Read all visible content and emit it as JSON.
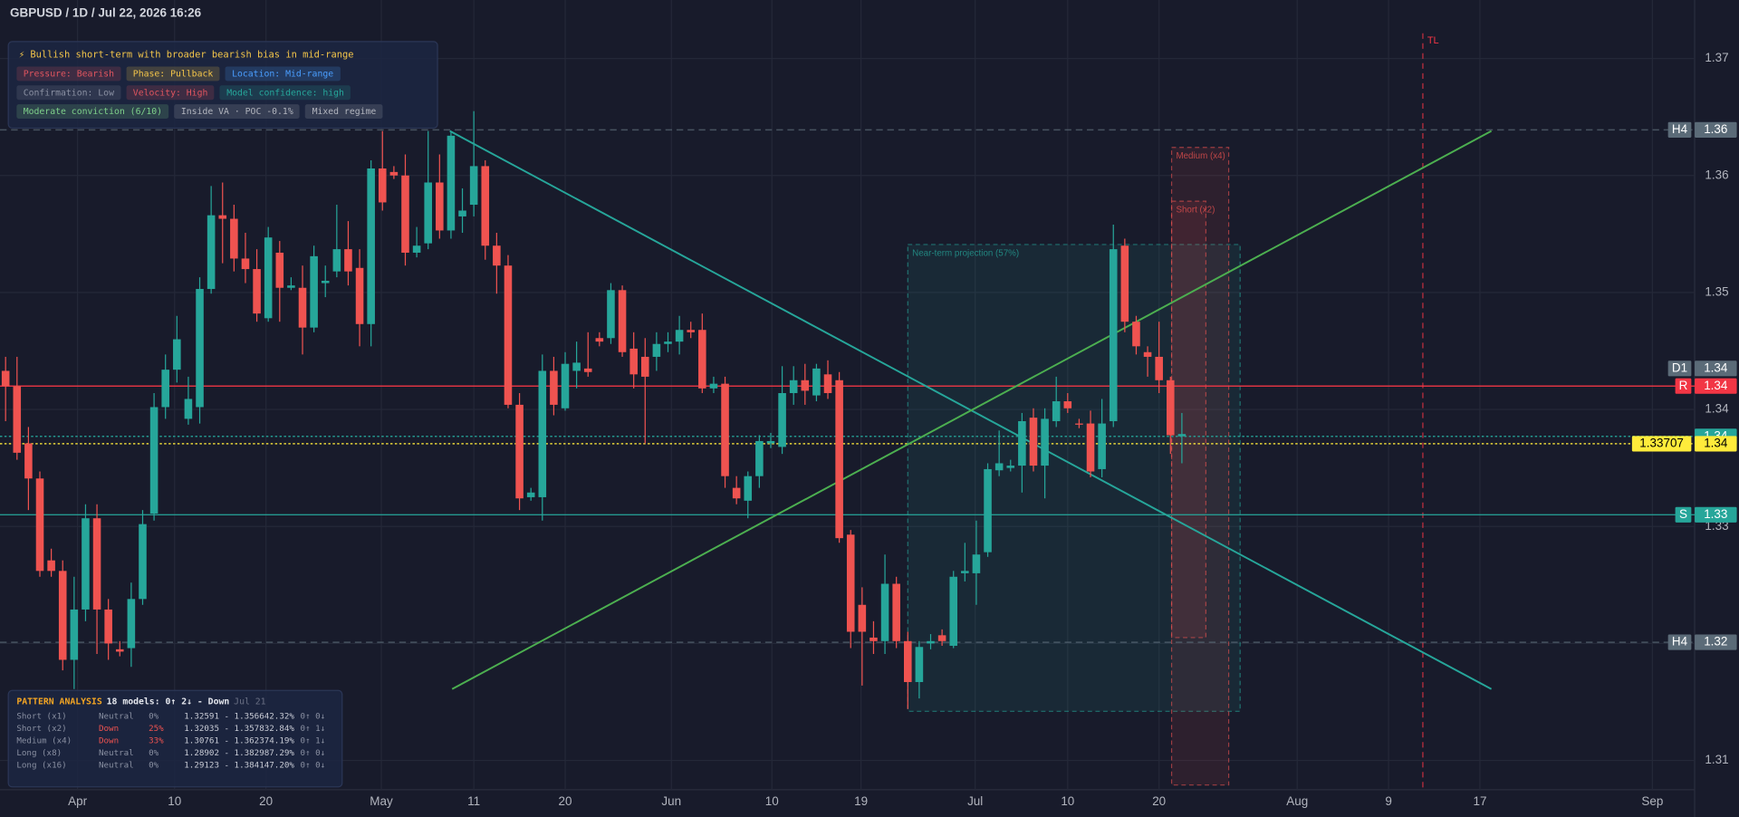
{
  "header": "GBPUSD / 1D / Jul 22, 2026 16:26",
  "insight": {
    "headline": "⚡ Bullish short-term with broader bearish bias in mid-range",
    "chips": [
      {
        "text": "Pressure: Bearish",
        "color": "#e0555f"
      },
      {
        "text": "Phase: Pullback",
        "color": "#f3c54a"
      },
      {
        "text": "Location: Mid-range",
        "color": "#4a9eff"
      },
      {
        "text": "Confirmation: Low",
        "color": "#8a90a2"
      },
      {
        "text": "Velocity: High",
        "color": "#e0555f"
      },
      {
        "text": "Model confidence: high",
        "color": "#26a69a"
      },
      {
        "text": "Moderate conviction (6/10)",
        "color": "#7ed08a"
      },
      {
        "text": "Inside VA · POC -0.1%",
        "color": "#b2b5be"
      },
      {
        "text": "Mixed regime",
        "color": "#b2b5be"
      }
    ]
  },
  "pattern_analysis": {
    "title": "PATTERN ANALYSIS",
    "summary": "18 models: 0↑ 2↓ - Down",
    "date": "Jul 21",
    "rows": [
      {
        "cells": [
          "Short (x1)",
          "Neutral",
          "0%",
          "1.32591 - 1.35664",
          "2.32%",
          "0↑ 0↓"
        ],
        "color": "#8a90a2"
      },
      {
        "cells": [
          "Short (x2)",
          "Down",
          "25%",
          "1.32035 - 1.35783",
          "2.84%",
          "0↑ 1↓"
        ],
        "color": "#ef5350"
      },
      {
        "cells": [
          "Medium (x4)",
          "Down",
          "33%",
          "1.30761 - 1.36237",
          "4.19%",
          "0↑ 1↓"
        ],
        "color": "#ef5350"
      },
      {
        "cells": [
          "Long (x8)",
          "Neutral",
          "0%",
          "1.28902 - 1.38298",
          "7.29%",
          "0↑ 0↓"
        ],
        "color": "#8a90a2"
      },
      {
        "cells": [
          "Long (x16)",
          "Neutral",
          "0%",
          "1.29123 - 1.38414",
          "7.20%",
          "0↑ 0↓"
        ],
        "color": "#8a90a2"
      }
    ]
  },
  "chart_data": {
    "type": "candlestick",
    "up_color": "#26a69a",
    "down_color": "#ef5350",
    "xlim": [
      -0.49,
      147.9
    ],
    "ylim": [
      1.3075,
      1.375
    ],
    "grid": true,
    "xticks": [
      {
        "value": 6.3,
        "label": "Apr"
      },
      {
        "value": 14.8,
        "label": "10"
      },
      {
        "value": 22.8,
        "label": "20"
      },
      {
        "value": 32.9,
        "label": "May"
      },
      {
        "value": 41,
        "label": "11"
      },
      {
        "value": 49,
        "label": "20"
      },
      {
        "value": 58.3,
        "label": "Jun"
      },
      {
        "value": 67.1,
        "label": "10"
      },
      {
        "value": 74.9,
        "label": "19"
      },
      {
        "value": 84.9,
        "label": "Jul"
      },
      {
        "value": 93,
        "label": "10"
      },
      {
        "value": 101,
        "label": "20"
      },
      {
        "value": 113.1,
        "label": "Aug"
      },
      {
        "value": 121.1,
        "label": "9"
      },
      {
        "value": 129.1,
        "label": "17"
      },
      {
        "value": 144.2,
        "label": "Sep"
      }
    ],
    "yticks": [
      1.31,
      1.32,
      1.33,
      1.34,
      1.35,
      1.36,
      1.37
    ],
    "open": [
      1.3433,
      1.342,
      1.3371,
      1.3341,
      1.3271,
      1.3262,
      1.3186,
      1.3229,
      1.3307,
      1.3229,
      1.3195,
      1.3196,
      1.3238,
      1.3311,
      1.3402,
      1.3434,
      1.3392,
      1.3402,
      1.3503,
      1.3566,
      1.3563,
      1.3529,
      1.352,
      1.3478,
      1.3534,
      1.3504,
      1.3504,
      1.347,
      1.3508,
      1.3518,
      1.3537,
      1.3521,
      1.3473,
      1.3606,
      1.3603,
      1.36,
      1.3534,
      1.3542,
      1.3594,
      1.3553,
      1.3565,
      1.3575,
      1.3608,
      1.354,
      1.3523,
      1.3404,
      1.3325,
      1.3325,
      1.3433,
      1.3401,
      1.3433,
      1.3435,
      1.3461,
      1.3461,
      1.3502,
      1.3452,
      1.3445,
      1.3445,
      1.3456,
      1.3458,
      1.3468,
      1.3468,
      1.3418,
      1.3422,
      1.3333,
      1.3322,
      1.3343,
      1.3371,
      1.3368,
      1.3414,
      1.3425,
      1.3412,
      1.343,
      1.3425,
      1.3293,
      1.3233,
      1.3205,
      1.3202,
      1.3251,
      1.3202,
      1.3167,
      1.32,
      1.3207,
      1.3198,
      1.326,
      1.326,
      1.3278,
      1.3348,
      1.335,
      1.3352,
      1.3393,
      1.3352,
      1.339,
      1.3407,
      1.3388,
      1.3388,
      1.3349,
      1.339,
      1.354,
      1.3475,
      1.3449,
      1.3445,
      1.3425,
      1.3377
    ],
    "high": [
      1.3445,
      1.3445,
      1.3385,
      1.3347,
      1.3281,
      1.3271,
      1.3257,
      1.3319,
      1.3319,
      1.3238,
      1.3202,
      1.3252,
      1.3314,
      1.3414,
      1.3447,
      1.348,
      1.3428,
      1.3513,
      1.3591,
      1.3594,
      1.3575,
      1.3551,
      1.3537,
      1.3556,
      1.3544,
      1.3513,
      1.3523,
      1.354,
      1.3523,
      1.3575,
      1.3561,
      1.3537,
      1.3613,
      1.3638,
      1.3608,
      1.3618,
      1.3556,
      1.3638,
      1.3618,
      1.3638,
      1.3589,
      1.3655,
      1.3613,
      1.3551,
      1.3532,
      1.3414,
      1.3333,
      1.3447,
      1.3445,
      1.3449,
      1.3458,
      1.3466,
      1.3466,
      1.3508,
      1.3506,
      1.3466,
      1.3461,
      1.3466,
      1.3466,
      1.348,
      1.3475,
      1.3482,
      1.3428,
      1.3428,
      1.3343,
      1.3347,
      1.3378,
      1.338,
      1.3437,
      1.3437,
      1.3439,
      1.3439,
      1.3442,
      1.3432,
      1.3297,
      1.3248,
      1.3219,
      1.3276,
      1.3257,
      1.321,
      1.3202,
      1.3208,
      1.3212,
      1.3262,
      1.3286,
      1.3305,
      1.3354,
      1.3382,
      1.3357,
      1.3397,
      1.3401,
      1.3401,
      1.3428,
      1.3414,
      1.3392,
      1.3399,
      1.3409,
      1.3558,
      1.3546,
      1.348,
      1.3454,
      1.3475,
      1.3428,
      1.3397
    ],
    "low": [
      1.339,
      1.3357,
      1.3314,
      1.3257,
      1.3257,
      1.3177,
      1.3161,
      1.3219,
      1.3191,
      1.3186,
      1.3189,
      1.318,
      1.3233,
      1.3305,
      1.3392,
      1.3423,
      1.3387,
      1.3388,
      1.3499,
      1.3525,
      1.3518,
      1.3508,
      1.3475,
      1.3475,
      1.3475,
      1.3502,
      1.3447,
      1.3466,
      1.3496,
      1.3513,
      1.3506,
      1.3454,
      1.3454,
      1.357,
      1.3597,
      1.3523,
      1.353,
      1.3537,
      1.3546,
      1.3546,
      1.3551,
      1.3565,
      1.3528,
      1.3499,
      1.3401,
      1.3314,
      1.3322,
      1.3305,
      1.3395,
      1.3399,
      1.3418,
      1.3428,
      1.3454,
      1.3456,
      1.3445,
      1.3418,
      1.3371,
      1.3433,
      1.3449,
      1.3447,
      1.3461,
      1.3414,
      1.3414,
      1.3333,
      1.3319,
      1.3307,
      1.3333,
      1.3367,
      1.3362,
      1.3404,
      1.3404,
      1.3407,
      1.3409,
      1.3286,
      1.3196,
      1.3164,
      1.3191,
      1.3191,
      1.3196,
      1.3144,
      1.3153,
      1.3195,
      1.3198,
      1.3196,
      1.3253,
      1.3233,
      1.3274,
      1.3343,
      1.3347,
      1.3329,
      1.3347,
      1.3324,
      1.3385,
      1.3397,
      1.3384,
      1.3342,
      1.3342,
      1.3385,
      1.3466,
      1.3447,
      1.3428,
      1.3414,
      1.3362,
      1.3354
    ],
    "close": [
      1.342,
      1.3363,
      1.3341,
      1.3262,
      1.3262,
      1.3186,
      1.3229,
      1.3307,
      1.3229,
      1.32,
      1.3193,
      1.3238,
      1.3302,
      1.3402,
      1.3434,
      1.346,
      1.3409,
      1.3503,
      1.3566,
      1.3563,
      1.3529,
      1.352,
      1.3482,
      1.3547,
      1.3504,
      1.3506,
      1.347,
      1.3531,
      1.351,
      1.3537,
      1.3518,
      1.3473,
      1.3606,
      1.3577,
      1.36,
      1.3534,
      1.354,
      1.3594,
      1.3553,
      1.3634,
      1.357,
      1.3608,
      1.354,
      1.3523,
      1.3404,
      1.3324,
      1.3329,
      1.3433,
      1.3404,
      1.3439,
      1.344,
      1.3432,
      1.3458,
      1.3502,
      1.3449,
      1.343,
      1.3428,
      1.3456,
      1.3458,
      1.3468,
      1.3466,
      1.3418,
      1.3422,
      1.3343,
      1.3324,
      1.3343,
      1.3373,
      1.3373,
      1.3414,
      1.3425,
      1.3416,
      1.3435,
      1.3414,
      1.329,
      1.321,
      1.321,
      1.3202,
      1.3251,
      1.3202,
      1.3167,
      1.3197,
      1.3202,
      1.3202,
      1.3257,
      1.3262,
      1.3276,
      1.3349,
      1.3354,
      1.3352,
      1.339,
      1.3352,
      1.3392,
      1.3407,
      1.3401,
      1.3387,
      1.3347,
      1.3388,
      1.3537,
      1.3475,
      1.3454,
      1.3445,
      1.3425,
      1.3378,
      1.3379
    ],
    "levels": [
      {
        "tag": "H4",
        "label": "1.36",
        "value": 1.3639,
        "color": "#5b6b78",
        "line": "dashed"
      },
      {
        "tag": "D1",
        "label": "1.34",
        "value": 1.3435,
        "color": "#5b6b78",
        "line": "none"
      },
      {
        "tag": "R",
        "label": "1.34",
        "value": 1.342,
        "color": "#f23645",
        "line": "solid"
      },
      {
        "label": "1.34",
        "value": 1.3377,
        "color": "#26a69a",
        "line": "dotted"
      },
      {
        "tag": "1.33707",
        "label": "1.34",
        "value": 1.33707,
        "color": "#ffeb3b",
        "line": "dotted"
      },
      {
        "tag": "S",
        "label": "1.33",
        "value": 1.331,
        "color": "#26a69a",
        "line": "solid"
      },
      {
        "tag": "H4",
        "label": "1.32",
        "value": 1.3201,
        "color": "#5b6b78",
        "line": "dashed"
      }
    ],
    "trendlines": [
      {
        "x": [
          38.9,
          130.1
        ],
        "y": [
          1.3638,
          1.3161
        ],
        "color": "#26a69a"
      },
      {
        "x": [
          39.1,
          130.1
        ],
        "y": [
          1.3161,
          1.3638
        ],
        "color": "#4caf50"
      }
    ],
    "vlines": [
      {
        "x": 124.1,
        "label": "TL",
        "color": "#f23645"
      }
    ],
    "boxes": [
      {
        "label": "Near-term projection (57%)",
        "x": [
          79,
          108.1
        ],
        "y": [
          1.3541,
          1.3142
        ],
        "color": "#26a69a"
      },
      {
        "label": "Medium (x4)",
        "x": [
          102.1,
          107.1
        ],
        "y": [
          1.3624,
          1.3079
        ],
        "color": "#ef5350"
      },
      {
        "label": "Short (x2)",
        "x": [
          102.1,
          105.1
        ],
        "y": [
          1.3578,
          1.3205
        ],
        "color": "#ef5350"
      }
    ]
  }
}
